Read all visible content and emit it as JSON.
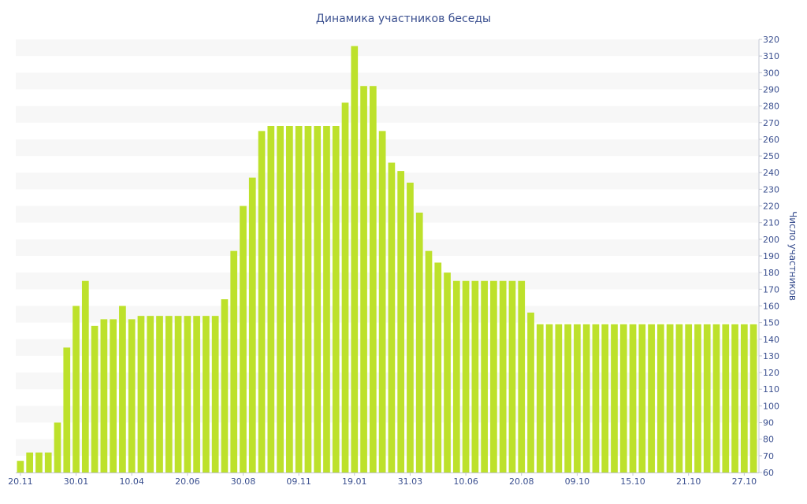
{
  "chart_data": {
    "type": "bar",
    "title": "Динамика участников беседы",
    "ylabel": "Число участников",
    "xlabel": "",
    "ylim": [
      60,
      320
    ],
    "y_tick_step": 10,
    "y_axis_side": "right",
    "grid": "alternating horizontal bands",
    "bar_color": "#bde12b",
    "band_color": "#f7f7f7",
    "text_color": "#3a4f8f",
    "x_tick_labels": [
      {
        "label": "20.11",
        "index": 0
      },
      {
        "label": "30.01",
        "index": 6
      },
      {
        "label": "10.04",
        "index": 12
      },
      {
        "label": "20.06",
        "index": 18
      },
      {
        "label": "30.08",
        "index": 24
      },
      {
        "label": "09.11",
        "index": 30
      },
      {
        "label": "19.01",
        "index": 36
      },
      {
        "label": "31.03",
        "index": 42
      },
      {
        "label": "10.06",
        "index": 48
      },
      {
        "label": "20.08",
        "index": 54
      },
      {
        "label": "09.10",
        "index": 60
      },
      {
        "label": "15.10",
        "index": 66
      },
      {
        "label": "21.10",
        "index": 72
      },
      {
        "label": "27.10",
        "index": 78
      }
    ],
    "values": [
      67,
      72,
      72,
      72,
      90,
      135,
      160,
      175,
      148,
      152,
      152,
      160,
      152,
      154,
      154,
      154,
      154,
      154,
      154,
      154,
      154,
      154,
      164,
      193,
      220,
      237,
      265,
      268,
      268,
      268,
      268,
      268,
      268,
      268,
      268,
      282,
      316,
      292,
      292,
      265,
      246,
      241,
      234,
      216,
      193,
      186,
      180,
      175,
      175,
      175,
      175,
      175,
      175,
      175,
      175,
      156,
      149,
      149,
      149,
      149,
      149,
      149,
      149,
      149,
      149,
      149,
      149,
      149,
      149,
      149,
      149,
      149,
      149,
      149,
      149,
      149,
      149,
      149,
      149,
      149
    ]
  }
}
